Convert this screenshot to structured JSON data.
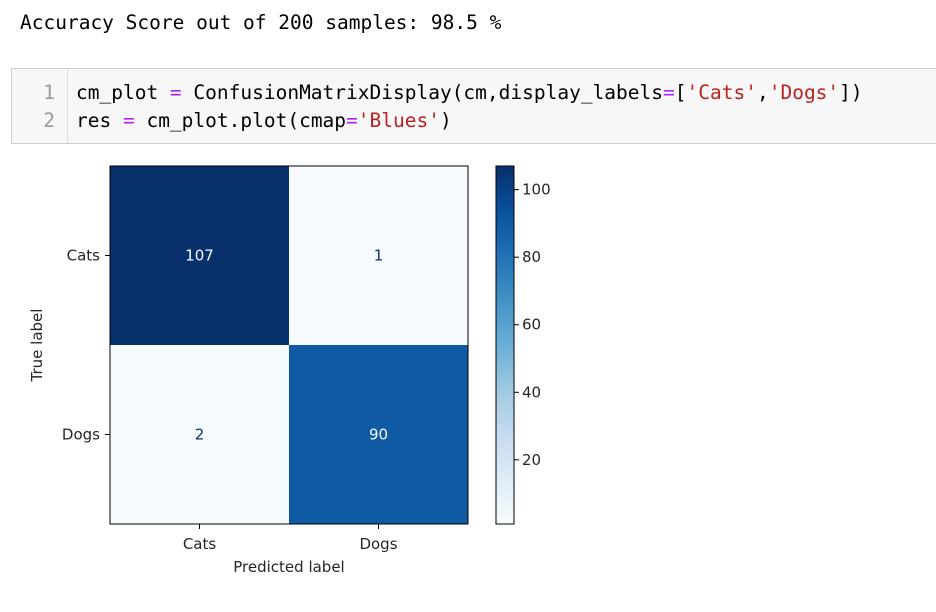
{
  "output": {
    "accuracy_text": "Accuracy Score out of 200 samples: 98.5 %"
  },
  "code": {
    "lines": [
      {
        "no": "1",
        "tokens": [
          {
            "t": "cm_plot ",
            "k": ""
          },
          {
            "t": "=",
            "k": "op"
          },
          {
            "t": " ConfusionMatrixDisplay(cm,display_labels",
            "k": ""
          },
          {
            "t": "=",
            "k": "op"
          },
          {
            "t": "[",
            "k": ""
          },
          {
            "t": "'Cats'",
            "k": "str"
          },
          {
            "t": ",",
            "k": ""
          },
          {
            "t": "'Dogs'",
            "k": "str"
          },
          {
            "t": "])",
            "k": ""
          }
        ]
      },
      {
        "no": "2",
        "tokens": [
          {
            "t": "res ",
            "k": ""
          },
          {
            "t": "=",
            "k": "op"
          },
          {
            "t": " cm_plot.plot(cmap",
            "k": ""
          },
          {
            "t": "=",
            "k": "op"
          },
          {
            "t": "'Blues'",
            "k": "str"
          },
          {
            "t": ")",
            "k": ""
          }
        ]
      }
    ]
  },
  "chart_data": {
    "type": "heatmap",
    "rows": [
      "Cats",
      "Dogs"
    ],
    "columns": [
      "Cats",
      "Dogs"
    ],
    "values": [
      [
        107,
        1
      ],
      [
        2,
        90
      ]
    ],
    "xlabel": "Predicted label",
    "ylabel": "True label",
    "colormap": "Blues",
    "colorbar": {
      "min": 1,
      "max": 107,
      "ticks": [
        20,
        40,
        60,
        80,
        100
      ]
    },
    "colors": {
      "high": "#08306b",
      "low": "#f7fbff"
    }
  }
}
